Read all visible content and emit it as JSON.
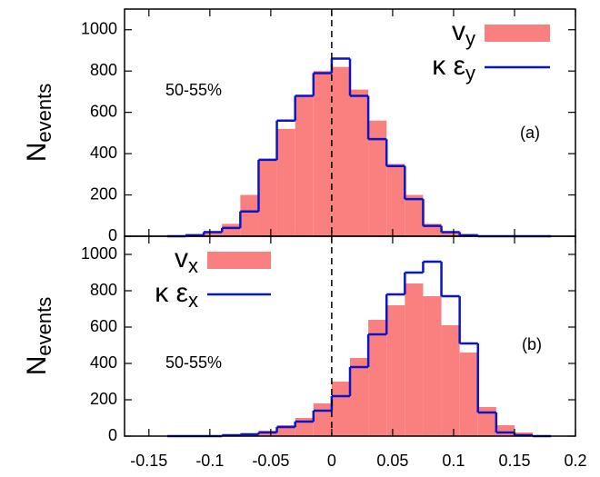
{
  "chart_data": [
    {
      "type": "histogram",
      "y_label": "N",
      "y_label_sub": "events",
      "panel_label": "(a)",
      "annotation": "50-55%",
      "bins": [
        -0.135,
        -0.12,
        -0.105,
        -0.09,
        -0.075,
        -0.06,
        -0.045,
        -0.03,
        -0.015,
        0,
        0.015,
        0.03,
        0.045,
        0.06,
        0.075,
        0.09,
        0.105,
        0.12,
        0.135,
        0.15,
        0.165,
        0.18
      ],
      "series": [
        {
          "name": "v",
          "name_sub": "y",
          "color": "#fa8080",
          "style": "filled",
          "values": [
            0,
            5,
            25,
            60,
            200,
            370,
            520,
            680,
            800,
            820,
            710,
            560,
            350,
            200,
            60,
            20,
            5,
            0,
            0,
            0,
            0
          ]
        },
        {
          "name": "κ ε",
          "name_sub": "y",
          "color": "#0a14c8",
          "style": "step",
          "values": [
            0,
            5,
            20,
            40,
            120,
            370,
            560,
            680,
            790,
            860,
            680,
            470,
            340,
            180,
            50,
            20,
            5,
            0,
            0,
            0,
            0
          ]
        }
      ],
      "xlim": [
        -0.17,
        0.2
      ],
      "xticks": [
        -0.15,
        -0.1,
        -0.05,
        0,
        0.05,
        0.1,
        0.15,
        0.2
      ],
      "ylim": [
        0,
        1100
      ],
      "yticks": [
        0,
        200,
        400,
        600,
        800,
        1000
      ],
      "legend": "upper right"
    },
    {
      "type": "histogram",
      "y_label": "N",
      "y_label_sub": "events",
      "panel_label": "(b)",
      "annotation": "50-55%",
      "bins": [
        -0.135,
        -0.12,
        -0.105,
        -0.09,
        -0.075,
        -0.06,
        -0.045,
        -0.03,
        -0.015,
        0,
        0.015,
        0.03,
        0.045,
        0.06,
        0.075,
        0.09,
        0.105,
        0.12,
        0.135,
        0.15,
        0.165,
        0.18
      ],
      "series": [
        {
          "name": "v",
          "name_sub": "x",
          "color": "#fa8080",
          "style": "filled",
          "values": [
            0,
            0,
            0,
            5,
            10,
            30,
            60,
            100,
            180,
            300,
            430,
            640,
            720,
            840,
            770,
            610,
            460,
            160,
            60,
            20,
            0
          ]
        },
        {
          "name": "κ ε",
          "name_sub": "x",
          "color": "#0a14c8",
          "style": "step",
          "values": [
            0,
            0,
            0,
            5,
            10,
            20,
            50,
            80,
            140,
            220,
            380,
            560,
            780,
            900,
            960,
            770,
            510,
            130,
            20,
            5,
            0
          ]
        }
      ],
      "xlim": [
        -0.17,
        0.2
      ],
      "xticks": [
        -0.15,
        -0.1,
        -0.05,
        0,
        0.05,
        0.1,
        0.15,
        0.2
      ],
      "ylim": [
        0,
        1100
      ],
      "yticks": [
        0,
        200,
        400,
        600,
        800,
        1000
      ],
      "legend": "upper left"
    }
  ]
}
